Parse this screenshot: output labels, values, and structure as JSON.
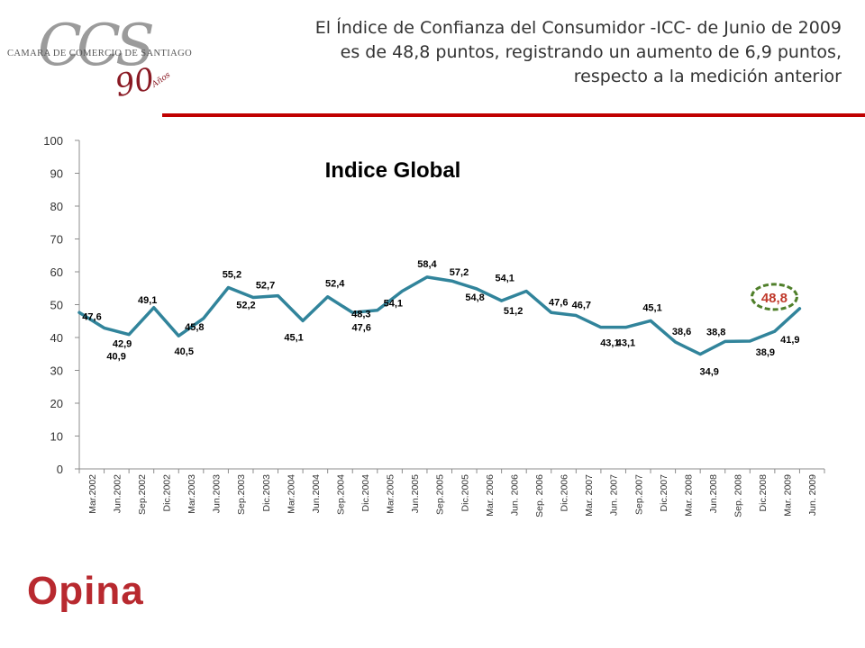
{
  "header": {
    "logo": {
      "mark": "CCS",
      "org": "CAMARA DE COMERCIO DE SANTIAGO",
      "anniversary": "90",
      "anniversary_word": "Años"
    },
    "headline_lines": [
      "El Índice de Confianza del Consumidor -ICC-  de Junio de 2009",
      "es de 48,8 puntos, registrando un aumento de 6,9 puntos,",
      "respecto a la medición anterior"
    ],
    "accent_color": "#c00000"
  },
  "footer": {
    "logo_text": "Opina",
    "logo_color": "#b8292f"
  },
  "chart_data": {
    "type": "line",
    "title": "Indice Global",
    "ylim": [
      0,
      100
    ],
    "yticks": [
      0,
      10,
      20,
      30,
      40,
      50,
      60,
      70,
      80,
      90,
      100
    ],
    "grid": false,
    "line_color": "#31849b",
    "highlight_color": "#c0392b",
    "highlight_ring_color": "#4f7f2a",
    "categories": [
      "Mar.2002",
      "Jun.2002",
      "Sep.2002",
      "Dic.2002",
      "Mar.2003",
      "Jun.2003",
      "Sep.2003",
      "Dic.2003",
      "Mar.2004",
      "Jun.2004",
      "Sep.2004",
      "Dic.2004",
      "Mar.2005",
      "Jun.2005",
      "Sep.2005",
      "Dic.2005",
      "Mar. 2006",
      "Jun. 2006",
      "Sep. 2006",
      "Dic.2006",
      "Mar. 2007",
      "Jun. 2007",
      "Sep.2007",
      "Dic.2007",
      "Mar. 2008",
      "Jun.2008",
      "Sep. 2008",
      "Dic.2008",
      "Mar. 2009",
      "Jun. 2009"
    ],
    "values": [
      47.6,
      42.9,
      40.9,
      49.1,
      40.5,
      45.8,
      55.2,
      52.2,
      52.7,
      45.1,
      52.4,
      47.6,
      48.3,
      54.1,
      58.4,
      57.2,
      54.8,
      51.2,
      54.1,
      47.6,
      46.7,
      43.1,
      43.1,
      45.1,
      38.6,
      34.9,
      38.8,
      38.9,
      41.9,
      48.8
    ],
    "labels": [
      "47,6",
      "42,9",
      "40,9",
      "49,1",
      "40,5",
      "45,8",
      "55,2",
      "52,2",
      "52,7",
      "45,1",
      "52,4",
      "47,6",
      "48,3",
      "54,1",
      "58,4",
      "57,2",
      "54,8",
      "51,2",
      "54,1",
      "47,6",
      "46,7",
      "43,1",
      "43,1",
      "45,1",
      "38,6",
      "34,9",
      "38,8",
      "38,9",
      "41,9",
      "48,8"
    ]
  }
}
